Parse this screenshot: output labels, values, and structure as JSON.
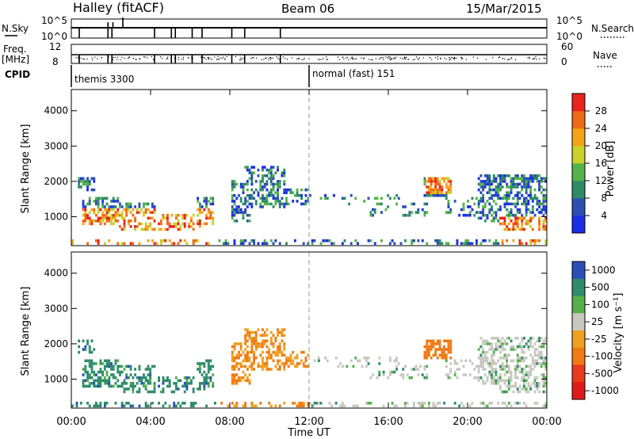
{
  "header": {
    "station": "Halley (fitACF)",
    "beam": "Beam 06",
    "date": "15/Mar/2015"
  },
  "params": {
    "nsky_label": "N.Sky",
    "nsearch_label": "N.Search",
    "nsky_ticks": [
      "10^5",
      "10^0"
    ],
    "nsearch_ticks": [
      "10^5",
      "10^0"
    ],
    "freq_label_1": "Freq.",
    "freq_label_2": "[MHz]",
    "freq_ticks": [
      "12",
      "8"
    ],
    "nave_label": "Nave",
    "nave_ticks": [
      "60",
      "0"
    ],
    "cpid_label": "CPID",
    "cpid_segments": [
      {
        "start_hour": 0,
        "text": "themis 3300"
      },
      {
        "start_hour": 12,
        "text": "normal (fast) 151"
      }
    ],
    "nsky_drops_hours": [
      0.4,
      1.85,
      2.05,
      4.2,
      5.05,
      5.25,
      6.1,
      6.6,
      8.1,
      8.75,
      10.55
    ],
    "nsky_spikes_hours": [
      1.85,
      2.1,
      2.6
    ]
  },
  "chart_data": [
    {
      "type": "heatmap",
      "name": "power",
      "ylabel": "Slant Range [km]",
      "y_ticks": [
        "1000",
        "2000",
        "3000",
        "4000"
      ],
      "y_tick_values": [
        1000,
        2000,
        3000,
        4000
      ],
      "ylim": [
        180,
        4600
      ],
      "xlim_hours": [
        0,
        24
      ],
      "colorbar_label": "Power [dB]",
      "colorbar_ticks": [
        "4",
        "8",
        "12",
        "16",
        "20",
        "24",
        "28"
      ],
      "colorbar_tick_values": [
        4,
        8,
        12,
        16,
        20,
        24,
        28
      ],
      "colorbar_range": [
        0,
        32
      ],
      "colors": [
        "#1a2ee6",
        "#2c4fb2",
        "#2d8c66",
        "#55b34a",
        "#c9d12a",
        "#f5a418",
        "#f06a14",
        "#e8241c"
      ],
      "vertical_marker_hour": 12
    },
    {
      "type": "heatmap",
      "name": "velocity",
      "ylabel": "Slant Range [km]",
      "y_ticks": [
        "1000",
        "2000",
        "3000",
        "4000"
      ],
      "y_tick_values": [
        1000,
        2000,
        3000,
        4000
      ],
      "ylim": [
        180,
        4600
      ],
      "xlim_hours": [
        0,
        24
      ],
      "xlabel": "Time UT",
      "x_ticks": [
        "00:00",
        "04:00",
        "08:00",
        "12:00",
        "16:00",
        "20:00",
        "00:00"
      ],
      "colorbar_label": "Velocity [m s⁻¹]",
      "colorbar_ticks": [
        "1000",
        "500",
        "100",
        "25",
        "-25",
        "-100",
        "-500",
        "-1000"
      ],
      "colors": [
        "#2a4fb8",
        "#2e8c6a",
        "#55b04a",
        "#c8c8c0",
        "#f0a020",
        "#f07a14",
        "#e83a1c",
        "#e01a1a"
      ],
      "vertical_marker_hour": 12
    }
  ]
}
